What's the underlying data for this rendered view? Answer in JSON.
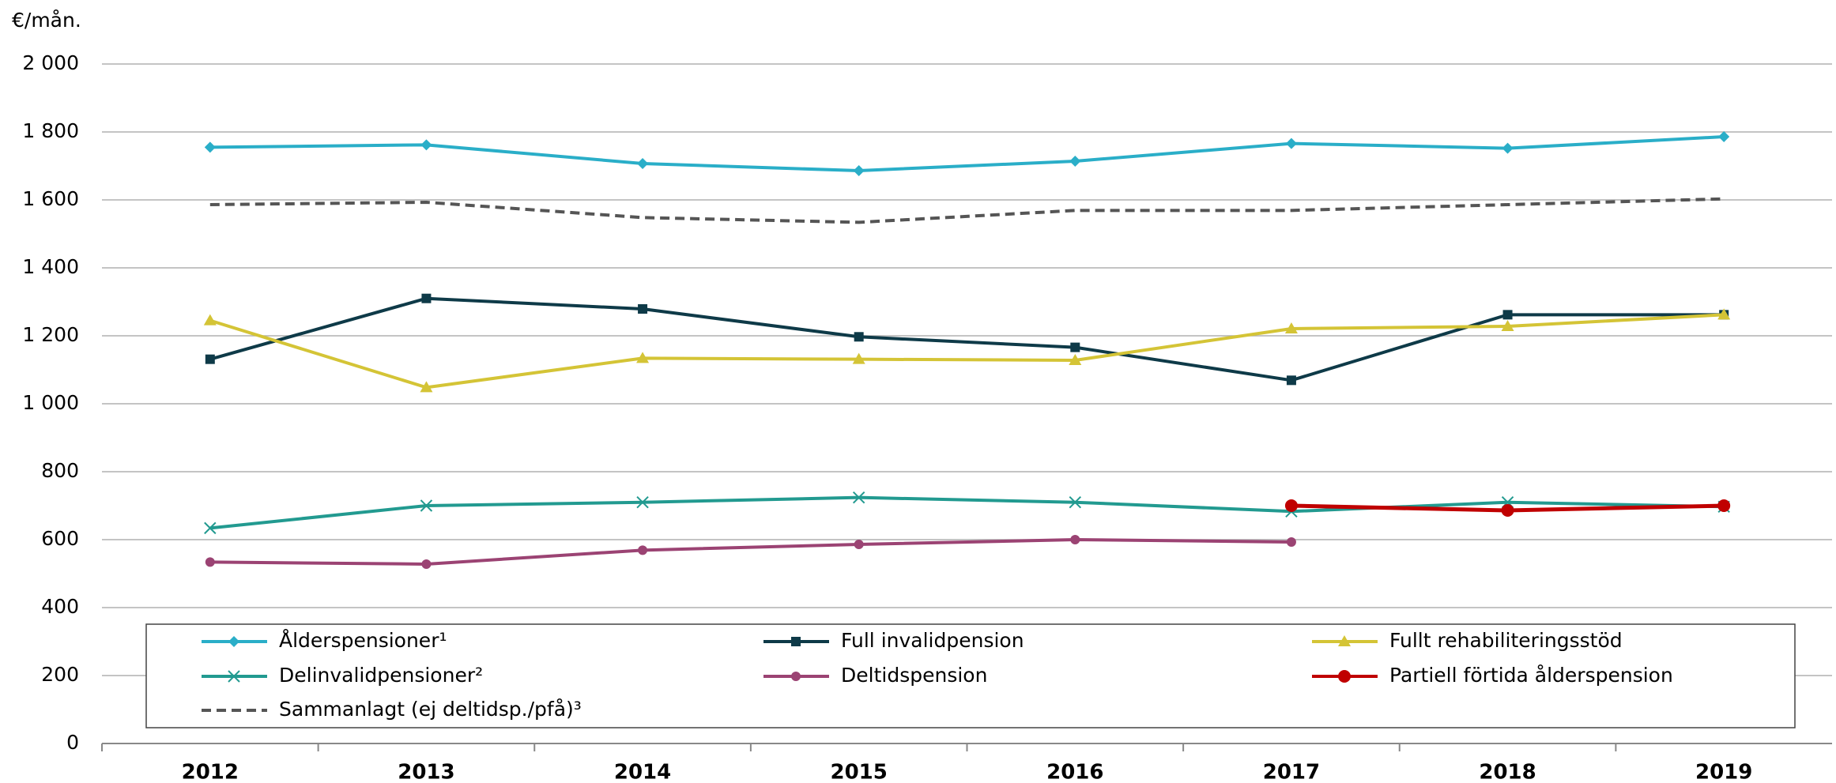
{
  "chart_data": {
    "type": "line",
    "y_unit_label": "€/mån.",
    "categories": [
      "2012",
      "2013",
      "2014",
      "2015",
      "2016",
      "2017",
      "2018",
      "2019"
    ],
    "ylim": [
      0,
      2000
    ],
    "yticks": [
      0,
      200,
      400,
      600,
      800,
      {
        "value": 1000,
        "label": "1 000"
      },
      {
        "value": 1200,
        "label": "1 200"
      },
      {
        "value": 1400,
        "label": "1 400"
      },
      {
        "value": 1600,
        "label": "1 600"
      },
      {
        "value": 1800,
        "label": "1 800"
      },
      {
        "value": 2000,
        "label": "2 000"
      }
    ],
    "grid": true,
    "legend": "bottom",
    "series": [
      {
        "name": "Ålderspensioner¹",
        "color": "#2aaec8",
        "marker": "diamond",
        "values": [
          1755,
          1762,
          1707,
          1686,
          1714,
          1766,
          1752,
          1786
        ]
      },
      {
        "name": "Full invalidpension",
        "color": "#0e3a48",
        "marker": "square",
        "values": [
          1131,
          1310,
          1279,
          1197,
          1166,
          1069,
          1262,
          1262
        ]
      },
      {
        "name": "Fullt rehabiliteringsstöd",
        "color": "#d4c436",
        "marker": "triangle",
        "values": [
          1245,
          1048,
          1134,
          1131,
          1128,
          1221,
          1228,
          1262
        ]
      },
      {
        "name": "Delinvalidpensioner²",
        "color": "#229a90",
        "marker": "x",
        "values": [
          634,
          700,
          710,
          724,
          710,
          683,
          710,
          697
        ]
      },
      {
        "name": "Deltidspension",
        "color": "#9b4373",
        "marker": "circle",
        "values": [
          534,
          528,
          569,
          586,
          600,
          593,
          null,
          null
        ]
      },
      {
        "name": "Partiell förtida ålderspension",
        "color": "#c00000",
        "marker": "bigcircle",
        "values": [
          null,
          null,
          null,
          null,
          null,
          700,
          686,
          700
        ]
      },
      {
        "name": "Sammanlagt (ej deltidsp./pfå)³",
        "color": "#555555",
        "marker": "none",
        "dash": true,
        "values": [
          1586,
          1593,
          1548,
          1534,
          1569,
          1569,
          1586,
          1603
        ]
      }
    ]
  }
}
